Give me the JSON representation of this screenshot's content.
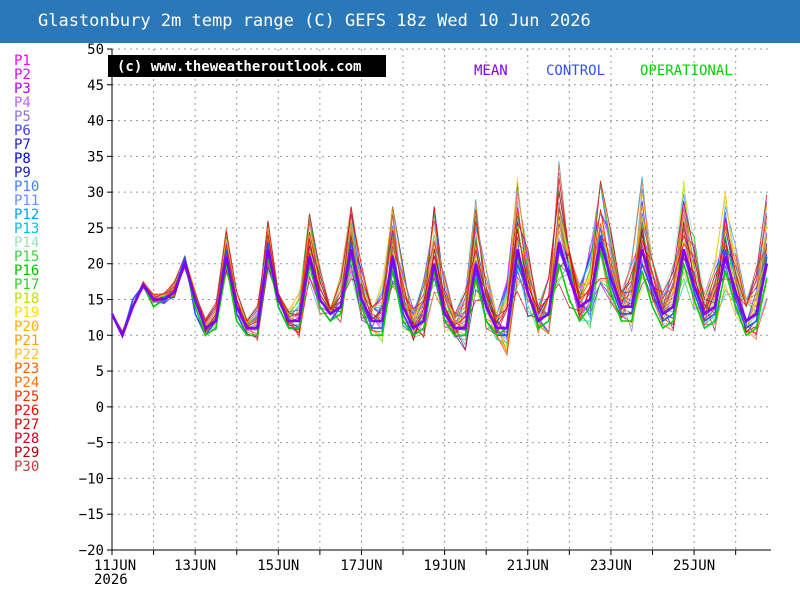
{
  "title": "Glastonbury 2m temp range (C) GEFS 18z Wed 10 Jun 2026",
  "copyright": "(c) www.theweatheroutlook.com",
  "legend": [
    {
      "label": "MEAN",
      "color": "#8000ff"
    },
    {
      "label": "CONTROL",
      "color": "#3050ff"
    },
    {
      "label": "OPERATIONAL",
      "color": "#00d000"
    }
  ],
  "members": [
    {
      "label": "P1",
      "color": "#ff00ff"
    },
    {
      "label": "P2",
      "color": "#e000ff"
    },
    {
      "label": "P3",
      "color": "#b000ff"
    },
    {
      "label": "P4",
      "color": "#c060ff"
    },
    {
      "label": "P5",
      "color": "#9070d0"
    },
    {
      "label": "P6",
      "color": "#4040ff"
    },
    {
      "label": "P7",
      "color": "#2020d0"
    },
    {
      "label": "P8",
      "color": "#0000ff"
    },
    {
      "label": "P9",
      "color": "#2020c0"
    },
    {
      "label": "P10",
      "color": "#4080ff"
    },
    {
      "label": "P11",
      "color": "#6090ff"
    },
    {
      "label": "P12",
      "color": "#00a0ff"
    },
    {
      "label": "P13",
      "color": "#00c0e0"
    },
    {
      "label": "P14",
      "color": "#a0e0c0"
    },
    {
      "label": "P15",
      "color": "#40d040"
    },
    {
      "label": "P16",
      "color": "#00c000"
    },
    {
      "label": "P17",
      "color": "#30d030"
    },
    {
      "label": "P18",
      "color": "#c0e000"
    },
    {
      "label": "P19",
      "color": "#ffe000"
    },
    {
      "label": "P20",
      "color": "#ffb000"
    },
    {
      "label": "P21",
      "color": "#ffa000"
    },
    {
      "label": "P22",
      "color": "#ffc020"
    },
    {
      "label": "P23",
      "color": "#ff6000"
    },
    {
      "label": "P24",
      "color": "#ff7010"
    },
    {
      "label": "P25",
      "color": "#ff3000"
    },
    {
      "label": "P26",
      "color": "#ff0000"
    },
    {
      "label": "P27",
      "color": "#e00000"
    },
    {
      "label": "P28",
      "color": "#d00020"
    },
    {
      "label": "P29",
      "color": "#b00010"
    },
    {
      "label": "P30",
      "color": "#c04040"
    }
  ],
  "chart_data": {
    "type": "line",
    "ylim": [
      -20,
      50
    ],
    "yticks": [
      -20,
      -15,
      -10,
      -5,
      0,
      5,
      10,
      15,
      20,
      25,
      30,
      35,
      40,
      45,
      50
    ],
    "x_range_days": [
      11,
      26.85
    ],
    "xticks": [
      {
        "day": 11,
        "label": "11JUN",
        "sub": "2026"
      },
      {
        "day": 13,
        "label": "13JUN"
      },
      {
        "day": 15,
        "label": "15JUN"
      },
      {
        "day": 17,
        "label": "17JUN"
      },
      {
        "day": 19,
        "label": "19JUN"
      },
      {
        "day": 21,
        "label": "21JUN"
      },
      {
        "day": 23,
        "label": "23JUN"
      },
      {
        "day": 25,
        "label": "25JUN"
      }
    ],
    "grid": true,
    "step_hours": 6,
    "mean_series": {
      "name": "MEAN",
      "color": "#8000ff",
      "days": [
        11,
        11.25,
        11.5,
        11.75,
        12,
        12.25,
        12.5,
        12.75,
        13,
        13.25,
        13.5,
        13.75,
        14,
        14.25,
        14.5,
        14.75,
        15,
        15.25,
        15.5,
        15.75,
        16,
        16.25,
        16.5,
        16.75,
        17,
        17.25,
        17.5,
        17.75,
        18,
        18.25,
        18.5,
        18.75,
        19,
        19.25,
        19.5,
        19.75,
        20,
        20.25,
        20.5,
        20.75,
        21,
        21.25,
        21.5,
        21.75,
        22,
        22.25,
        22.5,
        22.75,
        23,
        23.25,
        23.5,
        23.75,
        24,
        24.25,
        24.5,
        24.75,
        25,
        25.25,
        25.5,
        25.75,
        26,
        26.25,
        26.5,
        26.75
      ],
      "values": [
        13,
        10,
        14,
        17,
        15,
        15,
        16,
        20,
        15,
        11,
        12,
        21,
        14,
        11,
        11,
        22,
        15,
        12,
        12,
        21,
        15,
        13,
        14,
        22,
        15,
        12,
        12,
        21,
        14,
        11,
        12,
        20,
        13,
        11,
        11,
        20,
        14,
        11,
        11,
        22,
        16,
        12,
        13,
        23,
        18,
        14,
        15,
        23,
        18,
        14,
        14,
        22,
        17,
        13,
        14,
        22,
        17,
        13,
        14,
        21,
        16,
        12,
        13,
        20
      ]
    },
    "control_series": {
      "name": "CONTROL",
      "color": "#3050ff",
      "days": [
        11,
        11.25,
        11.5,
        11.75,
        12,
        12.25,
        12.5,
        12.75,
        13,
        13.25,
        13.5,
        13.75,
        14,
        14.25,
        14.5,
        14.75,
        15,
        15.25,
        15.5,
        15.75,
        16,
        16.25,
        16.5,
        16.75,
        17,
        17.25,
        17.5,
        17.75,
        18,
        18.25,
        18.5,
        18.75,
        19,
        19.25,
        19.5,
        19.75,
        20,
        20.25,
        20.5,
        20.75,
        21,
        21.25,
        21.5,
        21.75,
        22,
        22.25,
        22.5,
        22.75,
        23,
        23.25,
        23.5,
        23.75,
        24,
        24.25,
        24.5,
        24.75,
        25,
        25.25,
        25.5,
        25.75,
        26,
        26.25,
        26.5,
        26.75
      ],
      "values": [
        13,
        10,
        15,
        17,
        14,
        15,
        16,
        21,
        13,
        10,
        12,
        22,
        13,
        10,
        10,
        23,
        14,
        11,
        11,
        21,
        14,
        12,
        14,
        23,
        15,
        11,
        11,
        20,
        13,
        10,
        11,
        19,
        12,
        10,
        10,
        19,
        12,
        10,
        10,
        20,
        16,
        12,
        13,
        22,
        18,
        14,
        15,
        24,
        17,
        13,
        13,
        20,
        16,
        12,
        13,
        22,
        16,
        12,
        13,
        22,
        15,
        11,
        12,
        21
      ]
    },
    "operational_series": {
      "name": "OPERATIONAL",
      "color": "#00d000",
      "days": [
        11,
        11.25,
        11.5,
        11.75,
        12,
        12.25,
        12.5,
        12.75,
        13,
        13.25,
        13.5,
        13.75,
        14,
        14.25,
        14.5,
        14.75,
        15,
        15.25,
        15.5,
        15.75,
        16,
        16.25,
        16.5,
        16.75,
        17,
        17.25,
        17.5,
        17.75,
        18,
        18.25,
        18.5,
        18.75,
        19,
        19.25,
        19.5,
        19.75,
        20,
        20.25,
        20.5,
        20.75,
        21,
        21.25,
        21.5,
        21.75,
        22,
        22.25,
        22.5,
        22.75,
        23,
        23.25,
        23.5,
        23.75,
        24,
        24.25,
        24.5,
        24.75,
        25,
        25.25,
        25.5,
        25.75,
        26,
        26.25,
        26.5,
        26.75
      ],
      "values": [
        13,
        10,
        14,
        17,
        14,
        15,
        16,
        20,
        14,
        10,
        11,
        20,
        12,
        10,
        10,
        21,
        14,
        11,
        11,
        20,
        14,
        12,
        13,
        21,
        14,
        10,
        10,
        19,
        12,
        10,
        11,
        19,
        12,
        10,
        10,
        18,
        12,
        10,
        11,
        21,
        16,
        11,
        12,
        20,
        15,
        12,
        14,
        22,
        16,
        12,
        12,
        19,
        14,
        11,
        12,
        20,
        15,
        11,
        12,
        19,
        14,
        10,
        11,
        18
      ]
    },
    "ensemble_spread": {
      "description": "30 perturbed members P1-P30 plotted as thin lines around the mean",
      "days": [
        11,
        11.75,
        12,
        12.5,
        12.75,
        13.25,
        13.75,
        14.25,
        14.75,
        15.25,
        15.75,
        16.25,
        16.75,
        17.25,
        17.75,
        18.25,
        18.75,
        19.25,
        19.75,
        20.25,
        20.75,
        21.25,
        21.75,
        22.25,
        22.75,
        23.25,
        23.75,
        24.25,
        24.75,
        25.25,
        25.75,
        26.25,
        26.75
      ],
      "max": [
        13,
        18,
        17,
        22,
        23,
        13,
        25,
        13,
        26,
        14,
        27,
        14,
        28,
        14,
        28,
        14,
        28,
        13,
        29,
        13,
        32,
        14,
        35,
        17,
        35,
        16,
        34,
        16,
        33,
        16,
        31,
        15,
        30
      ],
      "min": [
        7,
        14,
        12,
        13,
        17,
        7,
        8,
        8,
        8,
        9,
        8,
        9,
        9,
        7,
        8,
        7,
        8,
        7,
        7,
        6,
        8,
        6,
        9,
        8,
        9,
        8,
        10,
        9,
        9,
        8,
        8,
        7,
        7
      ]
    }
  }
}
